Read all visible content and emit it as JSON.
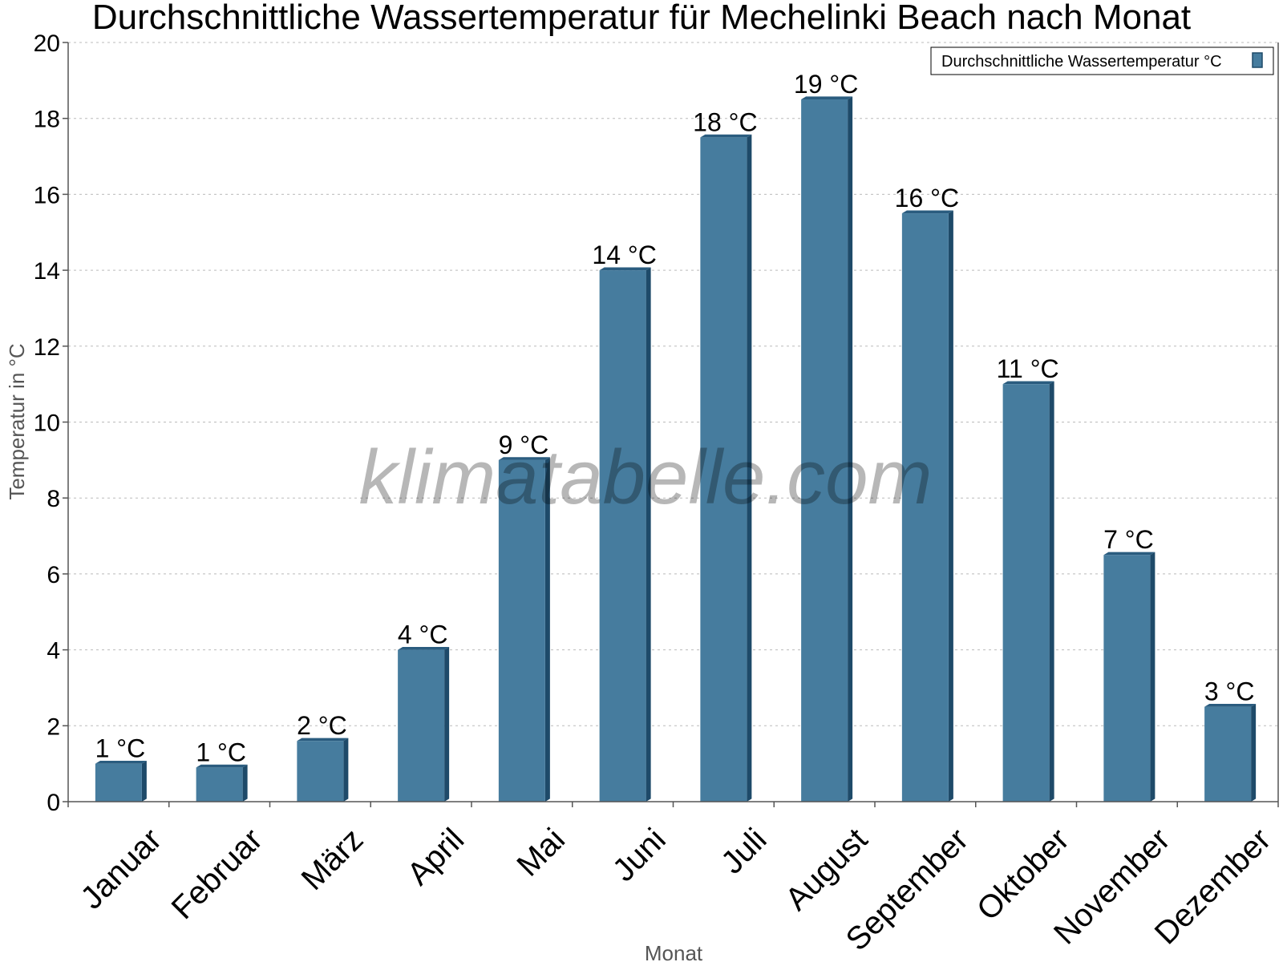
{
  "chart_data": {
    "type": "bar",
    "title": "Durchschnittliche Wassertemperatur für Mechelinki Beach nach Monat",
    "xlabel": "Monat",
    "ylabel": "Temperatur in °C",
    "ylim": [
      0,
      20
    ],
    "yticks": [
      0,
      2,
      4,
      6,
      8,
      10,
      12,
      14,
      16,
      18,
      20
    ],
    "grid": true,
    "legend_position": "top-right",
    "categories": [
      "Januar",
      "Februar",
      "März",
      "April",
      "Mai",
      "Juni",
      "Juli",
      "August",
      "September",
      "Oktober",
      "November",
      "Dezember"
    ],
    "series": [
      {
        "name": "Durchschnittliche Wassertemperatur °C",
        "values": [
          1.0,
          0.9,
          1.6,
          4.0,
          9.0,
          14.0,
          17.5,
          18.5,
          15.5,
          11.0,
          6.5,
          2.5
        ],
        "labels": [
          "1 °C",
          "1 °C",
          "2 °C",
          "4 °C",
          "9 °C",
          "14 °C",
          "18 °C",
          "19 °C",
          "16 °C",
          "11 °C",
          "7 °C",
          "3 °C"
        ]
      }
    ],
    "colors": {
      "bar": "#467c9e",
      "bar_side": "#1e4a69",
      "bar_top": "#2a5c7f",
      "grid": "#bbbbbb",
      "axis": "#555555"
    },
    "watermark": "klimatabelle.com"
  }
}
